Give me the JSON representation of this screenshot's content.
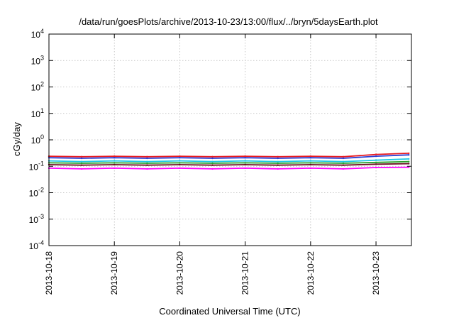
{
  "chart_data": {
    "type": "line",
    "title": "/data/run/goesPlots/archive/2013-10-23/13:00/flux/../bryn/5daysEarth.plot",
    "xlabel": "Coordinated Universal Time (UTC)",
    "ylabel": "cGy/day",
    "x_scale": "time",
    "y_scale": "log",
    "xlim": [
      "2013-10-18",
      "2013-10-23 13:00"
    ],
    "ylim": [
      0.0001,
      10000
    ],
    "x_ticks": [
      "2013-10-18",
      "2013-10-19",
      "2013-10-20",
      "2013-10-21",
      "2013-10-22",
      "2013-10-23"
    ],
    "y_ticks": [
      {
        "value": 0.0001,
        "base": "10",
        "exp": "-4"
      },
      {
        "value": 0.001,
        "base": "10",
        "exp": "-3"
      },
      {
        "value": 0.01,
        "base": "10",
        "exp": "-2"
      },
      {
        "value": 0.1,
        "base": "10",
        "exp": "-1"
      },
      {
        "value": 1,
        "base": "10",
        "exp": "0"
      },
      {
        "value": 10,
        "base": "10",
        "exp": "1"
      },
      {
        "value": 100,
        "base": "10",
        "exp": "2"
      },
      {
        "value": 1000,
        "base": "10",
        "exp": "3"
      },
      {
        "value": 10000,
        "base": "10",
        "exp": "4"
      }
    ],
    "grid": true,
    "legend": "none",
    "x": [
      "2013-10-18 00:00",
      "2013-10-18 12:00",
      "2013-10-19 00:00",
      "2013-10-19 12:00",
      "2013-10-20 00:00",
      "2013-10-20 12:00",
      "2013-10-21 00:00",
      "2013-10-21 12:00",
      "2013-10-22 00:00",
      "2013-10-22 12:00",
      "2013-10-23 00:00",
      "2013-10-23 12:00"
    ],
    "series": [
      {
        "color": "#e8191f",
        "values": [
          0.24,
          0.23,
          0.24,
          0.23,
          0.24,
          0.23,
          0.24,
          0.23,
          0.24,
          0.23,
          0.28,
          0.31
        ]
      },
      {
        "color": "#2b3fd6",
        "values": [
          0.21,
          0.2,
          0.21,
          0.2,
          0.21,
          0.2,
          0.21,
          0.2,
          0.21,
          0.2,
          0.24,
          0.27
        ]
      },
      {
        "color": "#1ec8e6",
        "values": [
          0.16,
          0.15,
          0.16,
          0.15,
          0.16,
          0.15,
          0.16,
          0.15,
          0.16,
          0.15,
          0.17,
          0.19
        ]
      },
      {
        "color": "#2ca02c",
        "values": [
          0.135,
          0.13,
          0.135,
          0.13,
          0.135,
          0.13,
          0.135,
          0.13,
          0.135,
          0.13,
          0.14,
          0.15
        ]
      },
      {
        "color": "#6a0d1f",
        "values": [
          0.115,
          0.11,
          0.115,
          0.11,
          0.115,
          0.11,
          0.115,
          0.11,
          0.115,
          0.11,
          0.12,
          0.125
        ]
      },
      {
        "color": "#ff00ff",
        "values": [
          0.085,
          0.08,
          0.085,
          0.08,
          0.085,
          0.08,
          0.085,
          0.08,
          0.085,
          0.08,
          0.09,
          0.092
        ]
      }
    ]
  }
}
